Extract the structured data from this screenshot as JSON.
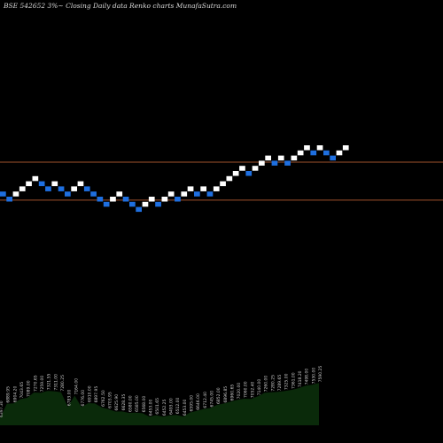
{
  "title": "BSE 542652  3%~  Closing Daily data  Renko  charts MunafaSutra.com",
  "chart_data": {
    "type": "renko",
    "xlabel": "",
    "ylabel": "",
    "grid": false,
    "legend": "none",
    "bricks": [
      {
        "col": 0,
        "row": 28,
        "dir": "down"
      },
      {
        "col": 1,
        "row": 27,
        "dir": "down"
      },
      {
        "col": 2,
        "row": 28,
        "dir": "up"
      },
      {
        "col": 3,
        "row": 29,
        "dir": "up"
      },
      {
        "col": 4,
        "row": 30,
        "dir": "up"
      },
      {
        "col": 5,
        "row": 31,
        "dir": "up"
      },
      {
        "col": 6,
        "row": 30,
        "dir": "down"
      },
      {
        "col": 7,
        "row": 29,
        "dir": "down"
      },
      {
        "col": 8,
        "row": 30,
        "dir": "up"
      },
      {
        "col": 9,
        "row": 29,
        "dir": "down"
      },
      {
        "col": 10,
        "row": 28,
        "dir": "down"
      },
      {
        "col": 11,
        "row": 29,
        "dir": "up"
      },
      {
        "col": 12,
        "row": 30,
        "dir": "up"
      },
      {
        "col": 13,
        "row": 29,
        "dir": "down"
      },
      {
        "col": 14,
        "row": 28,
        "dir": "down"
      },
      {
        "col": 15,
        "row": 27,
        "dir": "down"
      },
      {
        "col": 16,
        "row": 26,
        "dir": "down"
      },
      {
        "col": 17,
        "row": 27,
        "dir": "up"
      },
      {
        "col": 18,
        "row": 28,
        "dir": "up"
      },
      {
        "col": 19,
        "row": 27,
        "dir": "down"
      },
      {
        "col": 20,
        "row": 26,
        "dir": "down"
      },
      {
        "col": 21,
        "row": 25,
        "dir": "down"
      },
      {
        "col": 22,
        "row": 26,
        "dir": "up"
      },
      {
        "col": 23,
        "row": 27,
        "dir": "up"
      },
      {
        "col": 24,
        "row": 26,
        "dir": "down"
      },
      {
        "col": 25,
        "row": 27,
        "dir": "up"
      },
      {
        "col": 26,
        "row": 28,
        "dir": "up"
      },
      {
        "col": 27,
        "row": 27,
        "dir": "down"
      },
      {
        "col": 28,
        "row": 28,
        "dir": "up"
      },
      {
        "col": 29,
        "row": 29,
        "dir": "up"
      },
      {
        "col": 30,
        "row": 28,
        "dir": "down"
      },
      {
        "col": 31,
        "row": 29,
        "dir": "up"
      },
      {
        "col": 32,
        "row": 28,
        "dir": "down"
      },
      {
        "col": 33,
        "row": 29,
        "dir": "up"
      },
      {
        "col": 34,
        "row": 30,
        "dir": "up"
      },
      {
        "col": 35,
        "row": 31,
        "dir": "up"
      },
      {
        "col": 36,
        "row": 32,
        "dir": "up"
      },
      {
        "col": 37,
        "row": 33,
        "dir": "up"
      },
      {
        "col": 38,
        "row": 32,
        "dir": "down"
      },
      {
        "col": 39,
        "row": 33,
        "dir": "up"
      },
      {
        "col": 40,
        "row": 34,
        "dir": "up"
      },
      {
        "col": 41,
        "row": 35,
        "dir": "up"
      },
      {
        "col": 42,
        "row": 34,
        "dir": "down"
      },
      {
        "col": 43,
        "row": 35,
        "dir": "up"
      },
      {
        "col": 44,
        "row": 34,
        "dir": "down"
      },
      {
        "col": 45,
        "row": 35,
        "dir": "up"
      },
      {
        "col": 46,
        "row": 36,
        "dir": "up"
      },
      {
        "col": 47,
        "row": 37,
        "dir": "up"
      },
      {
        "col": 48,
        "row": 36,
        "dir": "down"
      },
      {
        "col": 49,
        "row": 37,
        "dir": "up"
      },
      {
        "col": 50,
        "row": 36,
        "dir": "down"
      },
      {
        "col": 51,
        "row": 35,
        "dir": "down"
      },
      {
        "col": 52,
        "row": 36,
        "dir": "up"
      },
      {
        "col": 53,
        "row": 37,
        "dir": "up"
      }
    ],
    "reference_lines": [
      {
        "row": 34.2
      },
      {
        "row": 26.8
      }
    ],
    "volume_labels": [
      "6397.30",
      "6889.95",
      "6904.20",
      "7043.65",
      "7089.00",
      "7270.65",
      "7259.00",
      "7321.55",
      "7311.00",
      "7280.25",
      "6783.00",
      "7164.00",
      "6776.00",
      "6910.00",
      "6897.95",
      "6762.50",
      "6703.95",
      "6625.90",
      "6628.35",
      "6580.00",
      "6585.00",
      "6568.00",
      "6453.00",
      "6501.65",
      "6452.25",
      "6493.00",
      "6512.00",
      "6453.00",
      "6595.00",
      "6646.00",
      "6712.40",
      "6745.00",
      "6852.00",
      "6896.85",
      "6960.65",
      "7020.00",
      "7060.00",
      "7052.40",
      "7140.00",
      "7260.00",
      "7280.25",
      "7289.65",
      "7325.00",
      "7361.00",
      "7418.20",
      "7498.00",
      "7530.00",
      "7590.25"
    ],
    "colors": {
      "up": "#ffffff",
      "down": "#1e6fe0",
      "reference_line": "#a0522d",
      "volume_fill": "#0a2a0a",
      "volume_text": "#cfcfcf",
      "background": "#000000"
    }
  }
}
